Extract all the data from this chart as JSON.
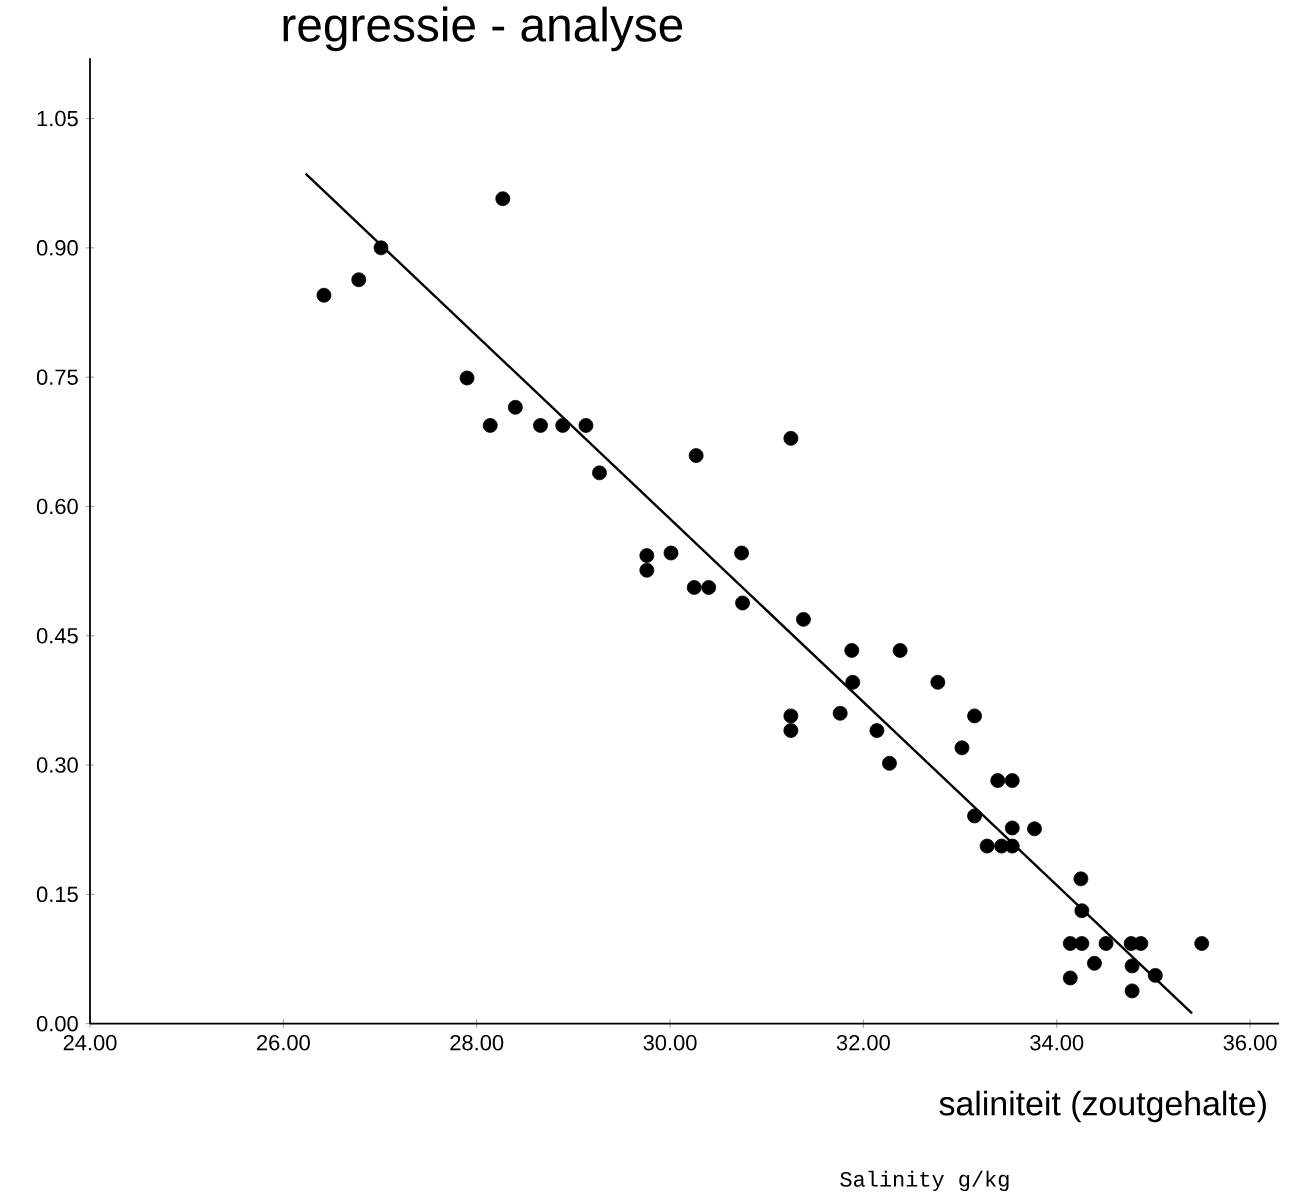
{
  "chart_data": {
    "type": "scatter",
    "title": "regressie - analyse",
    "xlabel": "saliniteit (zoutgehalte)",
    "annotations": [
      "Salinity g/kg"
    ],
    "xlim": [
      24,
      36.3
    ],
    "ylim": [
      0,
      1.12
    ],
    "xticks": [
      {
        "value": 24,
        "label": "24.00"
      },
      {
        "value": 26,
        "label": "26.00"
      },
      {
        "value": 28,
        "label": "28.00"
      },
      {
        "value": 30,
        "label": "30.00"
      },
      {
        "value": 32,
        "label": "32.00"
      },
      {
        "value": 34,
        "label": "34.00"
      },
      {
        "value": 36,
        "label": "36.00"
      }
    ],
    "yticks": [
      {
        "value": 0,
        "label": "0.00"
      },
      {
        "value": 0.15,
        "label": "0.15"
      },
      {
        "value": 0.3,
        "label": "0.30"
      },
      {
        "value": 0.45,
        "label": "0.45"
      },
      {
        "value": 0.6,
        "label": "0.60"
      },
      {
        "value": 0.75,
        "label": "0.75"
      },
      {
        "value": 0.9,
        "label": "0.90"
      },
      {
        "value": 1.05,
        "label": "1.05"
      }
    ],
    "series": [
      {
        "color": "#000000",
        "x": [
          26.42,
          26.78,
          27.01,
          28.27,
          27.9,
          28.14,
          28.4,
          28.66,
          28.89,
          29.13,
          29.27,
          29.76,
          29.76,
          30.01,
          30.27,
          30.25,
          30.4,
          30.74,
          30.75,
          31.25,
          31.25,
          31.25,
          31.38,
          31.76,
          31.88,
          31.89,
          32.14,
          32.27,
          32.38,
          32.77,
          33.02,
          33.15,
          33.15,
          33.28,
          33.39,
          33.54,
          33.43,
          33.54,
          33.54,
          33.77,
          34.25,
          34.26,
          34.14,
          34.26,
          34.14,
          34.39,
          34.51,
          34.77,
          34.87,
          34.78,
          34.78,
          35.02,
          35.5
        ],
        "values": [
          0.845,
          0.863,
          0.9,
          0.957,
          0.749,
          0.694,
          0.715,
          0.694,
          0.694,
          0.694,
          0.639,
          0.543,
          0.526,
          0.546,
          0.659,
          0.506,
          0.506,
          0.546,
          0.488,
          0.679,
          0.357,
          0.34,
          0.469,
          0.36,
          0.433,
          0.396,
          0.34,
          0.302,
          0.433,
          0.396,
          0.32,
          0.357,
          0.241,
          0.206,
          0.282,
          0.282,
          0.206,
          0.206,
          0.227,
          0.226,
          0.168,
          0.131,
          0.093,
          0.093,
          0.053,
          0.07,
          0.093,
          0.093,
          0.093,
          0.067,
          0.038,
          0.056,
          0.093
        ]
      },
      {
        "type": "line",
        "color": "#000000",
        "x": [
          26.23,
          35.4
        ],
        "values": [
          0.986,
          0.012
        ]
      }
    ]
  }
}
